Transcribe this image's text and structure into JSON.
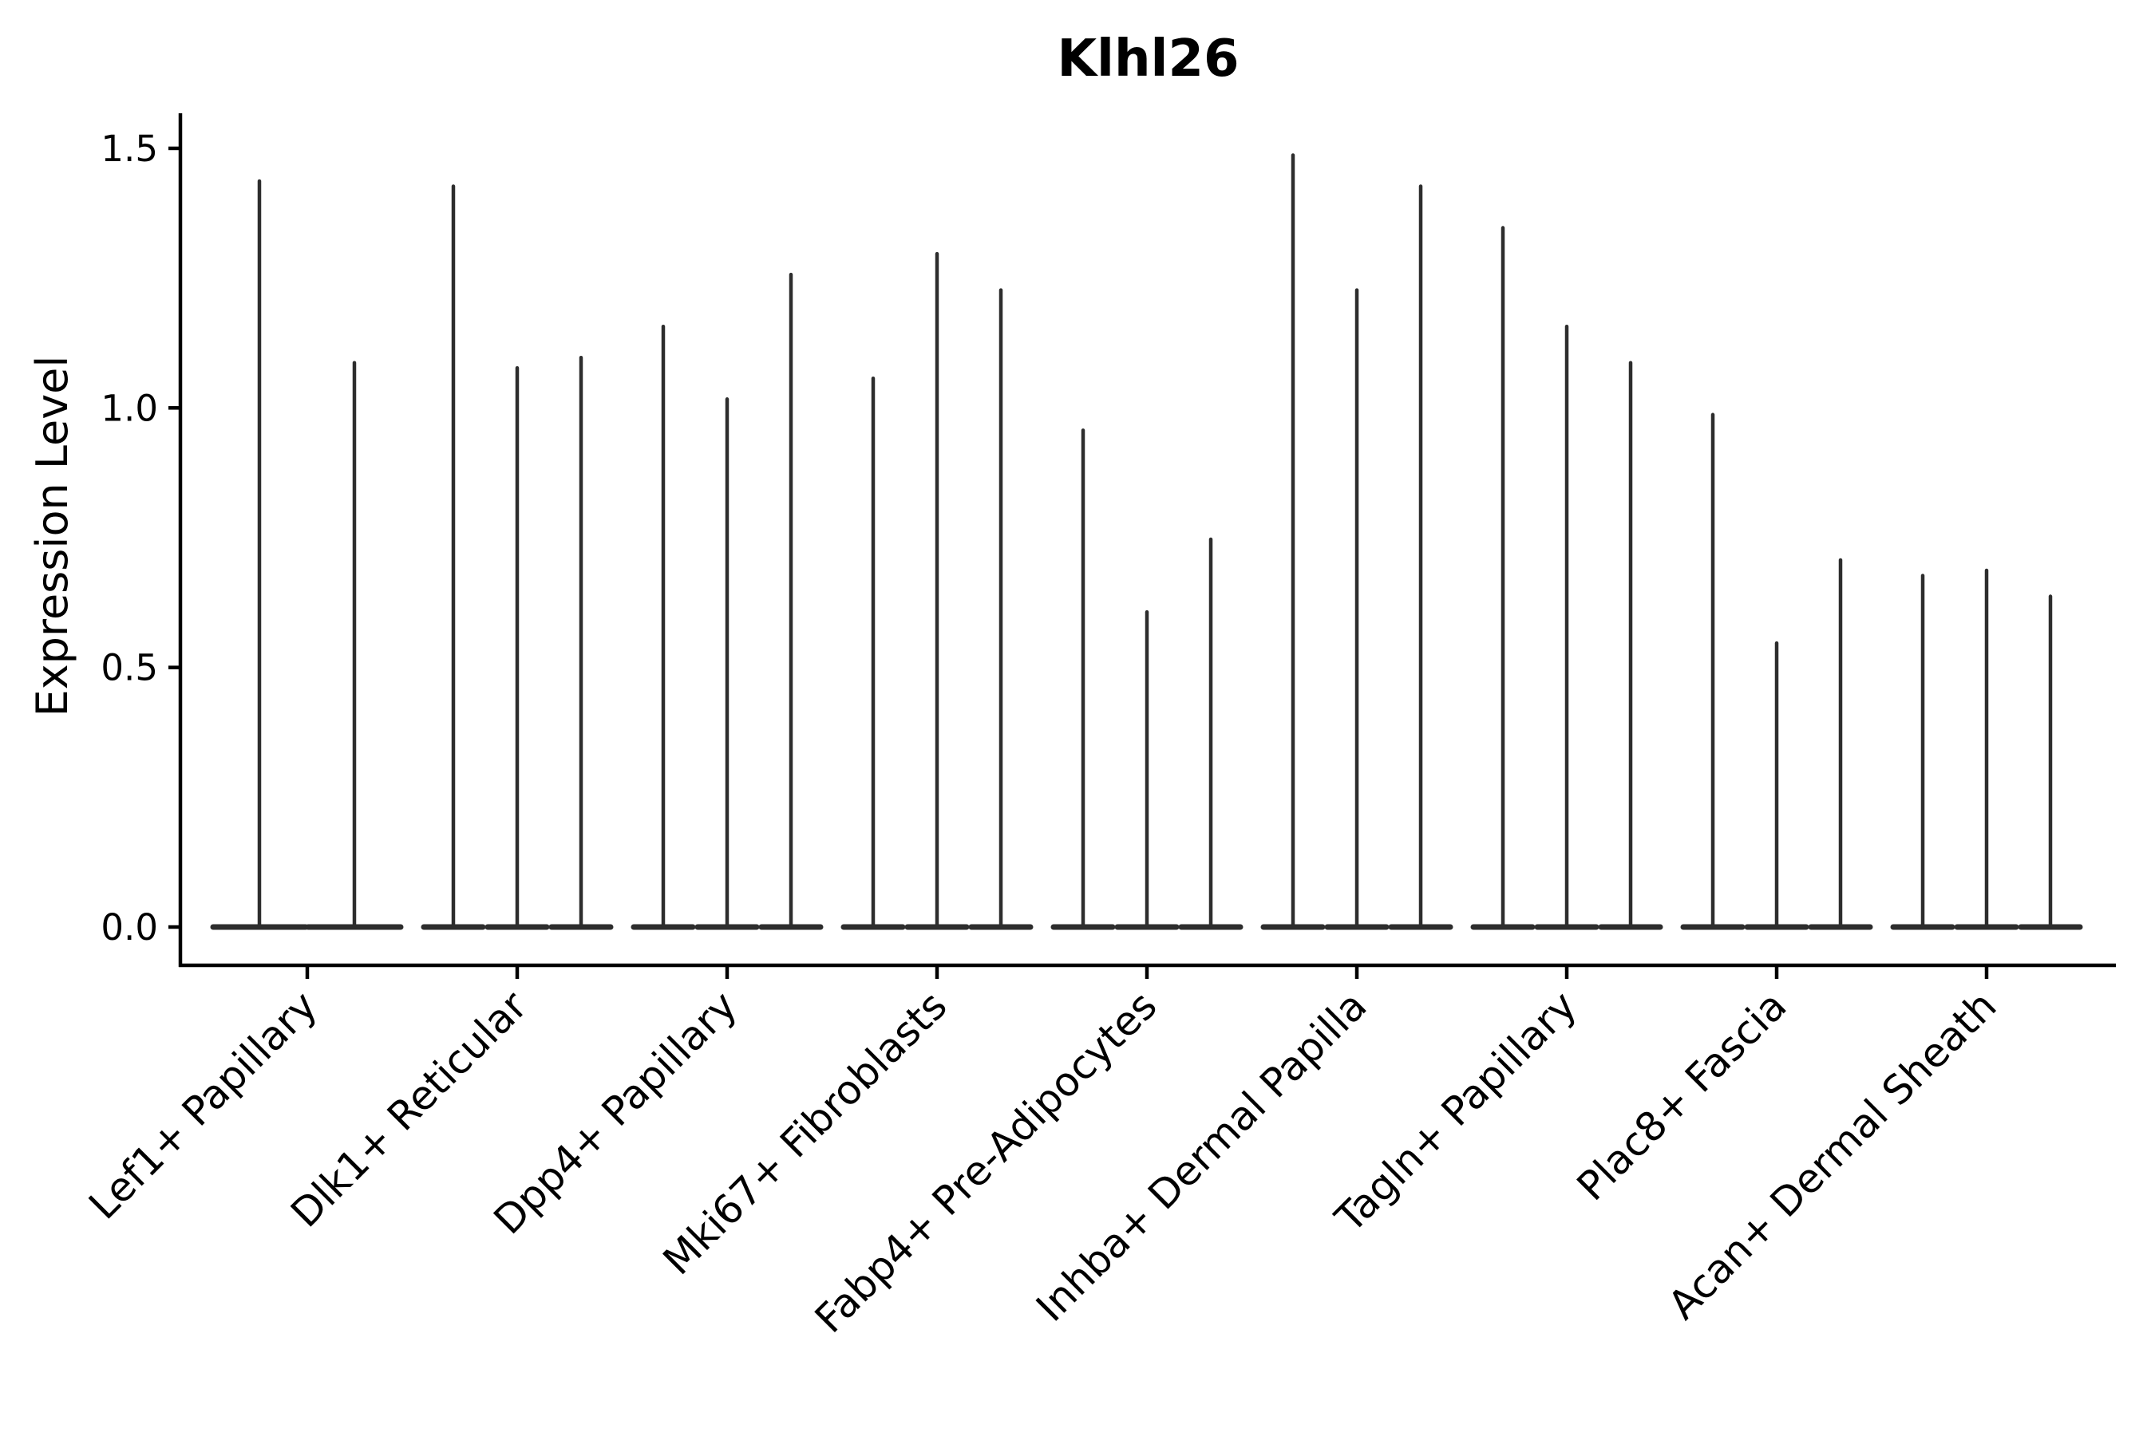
{
  "page": {
    "background": "#ffffff"
  },
  "chart_data": {
    "type": "violin",
    "title": "Klhl26",
    "xlabel": "",
    "ylabel": "Expression Level",
    "yticks": [
      "0.0",
      "0.5",
      "1.0",
      "1.5"
    ],
    "ylim": [
      -0.074,
      1.567
    ],
    "grid": false,
    "legend": false,
    "background": "#ffffff",
    "violin_color": "#2d2d2d",
    "axis_color": "#000000",
    "violin_min": 0.0,
    "groups": [
      {
        "category": "Lef1+ Papillary",
        "violin_maxima": [
          1.44,
          1.09
        ]
      },
      {
        "category": "Dlk1+ Reticular",
        "violin_maxima": [
          1.43,
          1.08,
          1.1
        ]
      },
      {
        "category": "Dpp4+ Papillary",
        "violin_maxima": [
          1.16,
          1.02,
          1.26
        ]
      },
      {
        "category": "Mki67+ Fibroblasts",
        "violin_maxima": [
          1.06,
          1.3,
          1.23
        ]
      },
      {
        "category": "Fabp4+ Pre-Adipocytes",
        "violin_maxima": [
          0.96,
          0.61,
          0.75
        ]
      },
      {
        "category": "Inhba+ Dermal Papilla",
        "violin_maxima": [
          1.49,
          1.23,
          1.43
        ]
      },
      {
        "category": "Tagln+ Papillary",
        "violin_maxima": [
          1.35,
          1.16,
          1.09
        ]
      },
      {
        "category": "Plac8+ Fascia",
        "violin_maxima": [
          0.99,
          0.55,
          0.71
        ]
      },
      {
        "category": "Acan+ Dermal Sheath",
        "violin_maxima": [
          0.68,
          0.69,
          0.64
        ]
      }
    ]
  }
}
